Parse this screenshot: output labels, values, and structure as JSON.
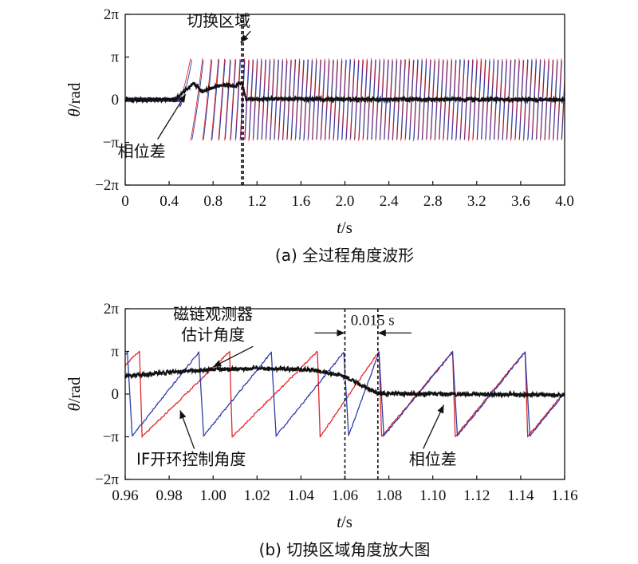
{
  "colors": {
    "red": "#e0262b",
    "blue": "#2e3da8",
    "black": "#111111"
  },
  "chart_data": [
    {
      "type": "line",
      "caption": "(a) 全过程角度波形",
      "xlabel": {
        "var": "t",
        "unit": "/s"
      },
      "ylabel": {
        "var": "θ",
        "unit": "/rad"
      },
      "xlim": [
        0,
        4.0
      ],
      "ylim": [
        -6.2832,
        6.2832
      ],
      "xticks": [
        0,
        0.4,
        0.8,
        1.2,
        1.6,
        2.0,
        2.4,
        2.8,
        3.2,
        3.6,
        4.0
      ],
      "xtick_labels": [
        "0",
        "0.4",
        "0.8",
        "1.2",
        "1.6",
        "2.0",
        "2.4",
        "2.8",
        "3.2",
        "3.6",
        "4.0"
      ],
      "yticks": [
        6.2832,
        3.1416,
        0,
        -3.1416,
        -6.2832
      ],
      "ytick_labels": [
        "2π",
        "π",
        "0",
        "−π",
        "−2π"
      ],
      "vlines": [
        1.06,
        1.075
      ],
      "annotations": [
        {
          "text": "切换区域",
          "x": 0.85,
          "y": 5.4,
          "ax": 1.05,
          "ay": 4.2
        },
        {
          "text": "相位差",
          "x": 0.15,
          "y": -4.2,
          "ax": 0.55,
          "ay": 0.4
        }
      ],
      "series": [
        {
          "color": "#e0262b",
          "kind": "if_open_loop",
          "start": 0.5,
          "freq_start": 3.5,
          "freq_end": 26,
          "ramp_end": 1.1
        },
        {
          "color": "#2e3da8",
          "kind": "flux_observer",
          "start": 0.5,
          "freq_start": 3.5,
          "freq_end": 26,
          "ramp_end": 1.1
        },
        {
          "color": "#111111",
          "kind": "phase_difference",
          "points": [
            [
              0,
              0
            ],
            [
              0.45,
              0
            ],
            [
              0.55,
              0.7
            ],
            [
              0.62,
              1.2
            ],
            [
              0.7,
              0.6
            ],
            [
              0.8,
              0.9
            ],
            [
              0.9,
              1.1
            ],
            [
              1.0,
              1.0
            ],
            [
              1.06,
              1.3
            ],
            [
              1.1,
              0.05
            ],
            [
              4.0,
              0
            ]
          ]
        }
      ]
    },
    {
      "type": "line",
      "caption": "(b) 切换区域角度放大图",
      "xlabel": {
        "var": "t",
        "unit": "/s"
      },
      "ylabel": {
        "var": "θ",
        "unit": "/rad"
      },
      "xlim": [
        0.96,
        1.16
      ],
      "ylim": [
        -6.2832,
        6.2832
      ],
      "xticks": [
        0.96,
        0.98,
        1.0,
        1.02,
        1.04,
        1.06,
        1.08,
        1.1,
        1.12,
        1.14,
        1.16
      ],
      "xtick_labels": [
        "0.96",
        "0.98",
        "1.00",
        "1.02",
        "1.04",
        "1.06",
        "1.08",
        "1.10",
        "1.12",
        "1.14",
        "1.16"
      ],
      "yticks": [
        6.2832,
        3.1416,
        0,
        -3.1416,
        -6.2832
      ],
      "ytick_labels": [
        "2π",
        "π",
        "0",
        "−π",
        "−2π"
      ],
      "vlines": [
        1.06,
        1.075
      ],
      "dimension": {
        "text": "0.015 s",
        "x1": 1.06,
        "x2": 1.075,
        "y": 4.5
      },
      "annotations": [
        {
          "lines": [
            "磁链观测器",
            "估计角度"
          ],
          "x": 1.0,
          "y": 5.5,
          "ax": 1.0,
          "ay": 2.0
        },
        {
          "text": "IF开环控制角度",
          "x": 0.99,
          "y": -5.2,
          "ax": 0.985,
          "ay": -1.2
        },
        {
          "text": "相位差",
          "x": 1.1,
          "y": -5.2,
          "ax": 1.105,
          "ay": -0.8
        }
      ],
      "series": [
        {
          "color": "#2e3da8",
          "kind": "flux_observer",
          "wraps": [
            0.961,
            0.9935,
            1.0265,
            1.0595,
            1.0755,
            1.109,
            1.142
          ]
        },
        {
          "color": "#e0262b",
          "kind": "if_open_loop",
          "wraps": [
            0.9665,
            1.0075,
            1.0475,
            1.0755,
            1.109,
            1.142
          ]
        },
        {
          "color": "#111111",
          "kind": "phase_difference",
          "points": [
            [
              0.96,
              1.3
            ],
            [
              0.98,
              1.6
            ],
            [
              1.0,
              1.8
            ],
            [
              1.02,
              1.9
            ],
            [
              1.045,
              1.8
            ],
            [
              1.06,
              1.3
            ],
            [
              1.068,
              0.6
            ],
            [
              1.075,
              0.05
            ],
            [
              1.1,
              0
            ],
            [
              1.16,
              -0.05
            ]
          ]
        }
      ]
    }
  ]
}
